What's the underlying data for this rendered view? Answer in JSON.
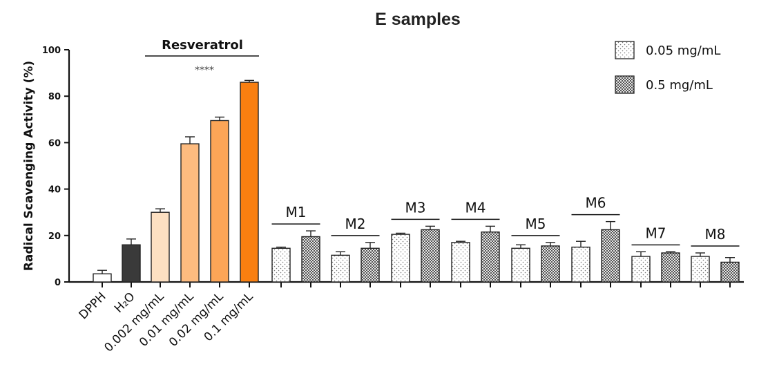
{
  "chart_data": {
    "type": "bar",
    "title": "E samples",
    "ylabel": "Radical Scavenging Activity (%)",
    "ylim": [
      0,
      100
    ],
    "yticks": [
      0,
      20,
      40,
      60,
      80,
      100
    ],
    "grid": false,
    "legend_position": "top-right",
    "legend": [
      {
        "name": "0.05 mg/mL",
        "pattern": "dots"
      },
      {
        "name": "0.5 mg/mL",
        "pattern": "checker"
      }
    ],
    "controls": [
      {
        "label": "DPPH",
        "value": 3.5,
        "error": 1.5,
        "color": "#ffffff"
      },
      {
        "label": "H₂O",
        "value": 16,
        "error": 2.5,
        "color": "#3a3a3a"
      }
    ],
    "reference": {
      "name": "Resveratrol",
      "significance": "****",
      "bars": [
        {
          "label": "0.002 mg/mL",
          "value": 30,
          "error": 1.5,
          "color": "#fde0c2"
        },
        {
          "label": "0.01 mg/mL",
          "value": 59.5,
          "error": 3,
          "color": "#fdbb7f"
        },
        {
          "label": "0.02 mg/mL",
          "value": 69.5,
          "error": 1.5,
          "color": "#fca557"
        },
        {
          "label": "0.1 mg/mL",
          "value": 86,
          "error": 0.8,
          "color": "#f97f10"
        }
      ]
    },
    "categories": [
      "M1",
      "M2",
      "M3",
      "M4",
      "M5",
      "M6",
      "M7",
      "M8"
    ],
    "series": [
      {
        "name": "0.05 mg/mL",
        "pattern": "dots",
        "values": [
          14.5,
          11.5,
          20.5,
          17,
          14.5,
          15,
          11,
          11
        ],
        "errors": [
          0.5,
          1.5,
          0.5,
          0.5,
          1.5,
          2.5,
          2,
          1.5
        ]
      },
      {
        "name": "0.5 mg/mL",
        "pattern": "checker",
        "values": [
          19.5,
          14.5,
          22.5,
          21.5,
          15.5,
          22.5,
          12.5,
          8.5
        ],
        "errors": [
          2.5,
          2.5,
          1.5,
          2.5,
          1.5,
          3.5,
          0.5,
          2
        ]
      }
    ]
  }
}
